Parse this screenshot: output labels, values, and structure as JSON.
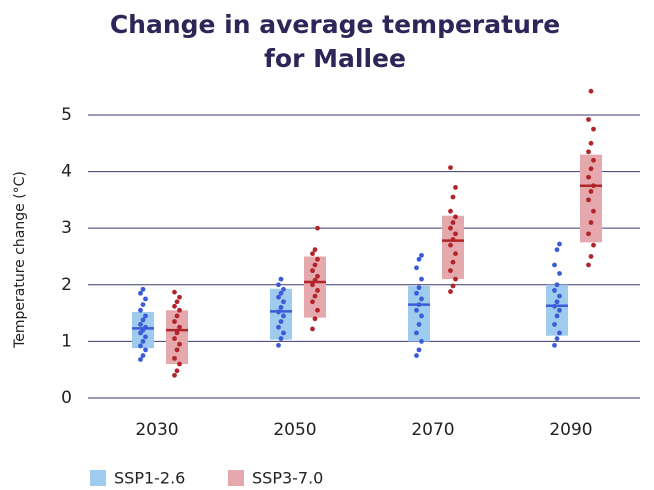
{
  "chart_data": {
    "type": "range-dot",
    "title": "Change in average temperature for Mallee",
    "y_label": "Temperature change (°C)",
    "categories": [
      "2030",
      "2050",
      "2070",
      "2090"
    ],
    "ylim": [
      0,
      5.6
    ],
    "yticks": [
      0,
      1,
      2,
      3,
      4,
      5
    ],
    "grid": true,
    "legend": "bottom-left",
    "series": [
      {
        "name": "SSP1-2.6",
        "color": "#9fcbee",
        "point_color": "#3b5bdb",
        "low": [
          0.88,
          1.03,
          1.0,
          1.1
        ],
        "high": [
          1.52,
          1.93,
          1.98,
          2.0
        ],
        "median": [
          1.23,
          1.53,
          1.65,
          1.63
        ],
        "points": [
          [
            0.68,
            0.75,
            0.85,
            0.92,
            1.0,
            1.08,
            1.15,
            1.2,
            1.25,
            1.3,
            1.38,
            1.45,
            1.55,
            1.65,
            1.75,
            1.85,
            1.92
          ],
          [
            0.93,
            1.05,
            1.15,
            1.25,
            1.35,
            1.45,
            1.52,
            1.6,
            1.7,
            1.78,
            1.85,
            1.92,
            2.0,
            2.1
          ],
          [
            0.75,
            0.85,
            1.0,
            1.15,
            1.3,
            1.45,
            1.55,
            1.65,
            1.75,
            1.85,
            1.95,
            2.1,
            2.3,
            2.45,
            2.52
          ],
          [
            0.93,
            1.05,
            1.15,
            1.3,
            1.45,
            1.55,
            1.62,
            1.7,
            1.8,
            1.9,
            2.0,
            2.2,
            2.35,
            2.62,
            2.72
          ]
        ]
      },
      {
        "name": "SSP3-7.0",
        "color": "#e5a9ad",
        "point_color": "#b0242a",
        "low": [
          0.6,
          1.42,
          2.1,
          2.75
        ],
        "high": [
          1.55,
          2.5,
          3.22,
          4.3
        ],
        "median": [
          1.2,
          2.05,
          2.78,
          3.75
        ],
        "points": [
          [
            0.4,
            0.48,
            0.6,
            0.7,
            0.85,
            0.95,
            1.05,
            1.15,
            1.25,
            1.35,
            1.45,
            1.55,
            1.62,
            1.7,
            1.78,
            1.87
          ],
          [
            1.22,
            1.4,
            1.55,
            1.7,
            1.8,
            1.9,
            2.0,
            2.08,
            2.15,
            2.25,
            2.35,
            2.45,
            2.55,
            2.62,
            3.0
          ],
          [
            1.88,
            1.98,
            2.1,
            2.25,
            2.4,
            2.55,
            2.7,
            2.8,
            2.9,
            3.0,
            3.1,
            3.2,
            3.3,
            3.55,
            3.72,
            4.07
          ],
          [
            2.35,
            2.5,
            2.7,
            2.9,
            3.1,
            3.3,
            3.5,
            3.65,
            3.75,
            3.9,
            4.05,
            4.2,
            4.35,
            4.5,
            4.75,
            4.92,
            5.42
          ]
        ]
      }
    ]
  }
}
